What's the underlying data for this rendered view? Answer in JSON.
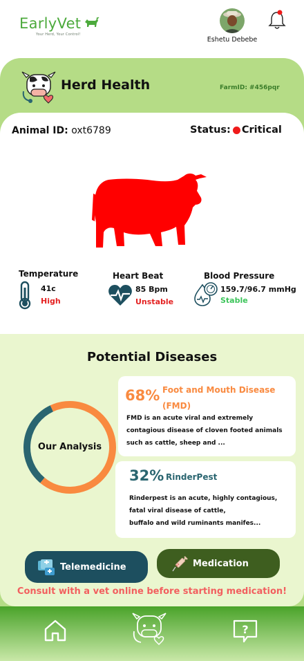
{
  "app": {
    "name": "EarlyVet",
    "tagline": "Your Herd, Your Control!"
  },
  "user": {
    "name": "Eshetu Debebe"
  },
  "notifications": {
    "has_unread": true
  },
  "herd": {
    "title": "Herd Health",
    "farm_id": "FarmID: #456pqr"
  },
  "animal": {
    "id_label": "Animal ID:",
    "id_value": "oxt6789",
    "status_label": "Status:",
    "status_value": "Critical",
    "status_color": "#ef1a1a"
  },
  "vitals": {
    "temperature": {
      "label": "Temperature",
      "value": "41c",
      "state": "High"
    },
    "heart_beat": {
      "label": "Heart Beat",
      "value": "85 Bpm",
      "state": "Unstable"
    },
    "blood_pressure": {
      "label": "Blood Pressure",
      "value": "159.7/96.7 mmHg",
      "state": "Stable"
    }
  },
  "diseases": {
    "title": "Potential Diseases",
    "analysis_label": "Our Analysis",
    "items": [
      {
        "percent": "68%",
        "name_line1": "Foot and Mouth Disease",
        "name_line2": "(FMD)",
        "desc": [
          "FMD is an acute viral and extremely",
          "contagious disease of cloven footed animals",
          "such as cattle, sheep and ..."
        ],
        "color": "#f98a40"
      },
      {
        "percent": "32%",
        "name_line1": "RinderPest",
        "desc": [
          "Rinderpest is an acute, highly contagious,",
          "fatal viral disease of cattle,",
          "buffalo and wild ruminants manifes..."
        ],
        "color": "#2a6570"
      }
    ]
  },
  "chart_data": {
    "type": "pie",
    "categories": [
      "Foot and Mouth Disease (FMD)",
      "RinderPest"
    ],
    "values": [
      68,
      32
    ],
    "colors": [
      "#f98a40",
      "#2a6570"
    ]
  },
  "actions": {
    "telemedicine": "Telemedicine",
    "medication": "Medication",
    "consult_note": "Consult with a vet online before starting medication!"
  },
  "nav": {
    "items": [
      "home-icon",
      "herd-health-icon",
      "help-icon"
    ]
  },
  "colors": {
    "brand_green": "#4caa3c",
    "band_green": "#b5dc86",
    "critical_red": "#e42222",
    "stable_green": "#3cc45a",
    "tele_button": "#1d4f5f",
    "med_button": "#3e5e1f",
    "consult_text": "#f25f5f"
  }
}
